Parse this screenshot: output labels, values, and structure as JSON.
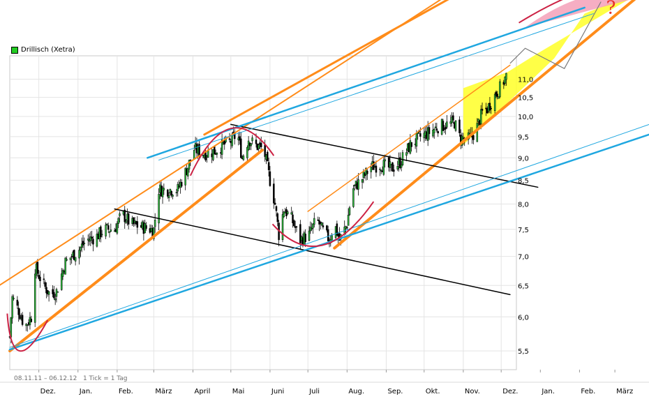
{
  "legend": {
    "label": "Drillisch (Xetra)",
    "color": "#22cc22"
  },
  "range_text": "08.11.11 – 06.12.12   1 Tick = 1 Tag",
  "annotation": "?",
  "chart_data": {
    "type": "candlestick",
    "title": "",
    "xlabel": "",
    "ylabel": "",
    "scale": "log",
    "ylim": [
      5.3,
      11.8
    ],
    "yticks": [
      5.5,
      6.0,
      6.5,
      7.0,
      7.5,
      8.0,
      8.5,
      9.0,
      9.5,
      10.0,
      10.5,
      11.0
    ],
    "ytick_labels": [
      "5,5",
      "6,0",
      "6,5",
      "7,0",
      "7,5",
      "8,0",
      "8,5",
      "9,0",
      "9,5",
      "10,0",
      "10,5",
      "11,0"
    ],
    "xlim": [
      "2011-11-08",
      "2013-03-28"
    ],
    "xtick_labels": [
      {
        "label": "Dez.",
        "date": "2011-12-01"
      },
      {
        "label": "Jan.",
        "date": "2012-01-01"
      },
      {
        "label": "Feb.",
        "date": "2012-02-01"
      },
      {
        "label": "März",
        "date": "2012-03-01"
      },
      {
        "label": "April",
        "date": "2012-04-01"
      },
      {
        "label": "Mai",
        "date": "2012-05-01"
      },
      {
        "label": "Juni",
        "date": "2012-06-01"
      },
      {
        "label": "Juli",
        "date": "2012-07-01"
      },
      {
        "label": "Aug.",
        "date": "2012-08-01"
      },
      {
        "label": "Sep.",
        "date": "2012-09-01"
      },
      {
        "label": "Okt.",
        "date": "2012-10-01"
      },
      {
        "label": "Nov.",
        "date": "2012-11-01"
      },
      {
        "label": "Dez.",
        "date": "2012-12-01"
      },
      {
        "label": "Jan.",
        "date": "2013-01-01"
      },
      {
        "label": "Feb.",
        "date": "2013-02-01"
      },
      {
        "label": "März",
        "date": "2013-03-01"
      }
    ],
    "grid": true,
    "price_path": [
      [
        "2011-11-08",
        5.7
      ],
      [
        "2011-11-10",
        6.3
      ],
      [
        "2011-11-15",
        6.1
      ],
      [
        "2011-11-20",
        5.85
      ],
      [
        "2011-11-25",
        6.0
      ],
      [
        "2011-11-28",
        6.8
      ],
      [
        "2011-12-05",
        6.5
      ],
      [
        "2011-12-10",
        6.35
      ],
      [
        "2011-12-15",
        6.4
      ],
      [
        "2011-12-22",
        6.9
      ],
      [
        "2012-01-01",
        7.1
      ],
      [
        "2012-01-08",
        7.3
      ],
      [
        "2012-01-15",
        7.35
      ],
      [
        "2012-01-22",
        7.5
      ],
      [
        "2012-01-30",
        7.5
      ],
      [
        "2012-02-05",
        7.8
      ],
      [
        "2012-02-12",
        7.6
      ],
      [
        "2012-02-20",
        7.55
      ],
      [
        "2012-02-28",
        7.5
      ],
      [
        "2012-03-01",
        7.5
      ],
      [
        "2012-03-05",
        8.3
      ],
      [
        "2012-03-12",
        8.3
      ],
      [
        "2012-03-20",
        8.3
      ],
      [
        "2012-03-28",
        8.8
      ],
      [
        "2012-04-02",
        9.2
      ],
      [
        "2012-04-10",
        9.1
      ],
      [
        "2012-04-18",
        9.15
      ],
      [
        "2012-04-25",
        9.3
      ],
      [
        "2012-05-02",
        9.4
      ],
      [
        "2012-05-06",
        9.6
      ],
      [
        "2012-05-10",
        9.0
      ],
      [
        "2012-05-15",
        9.45
      ],
      [
        "2012-05-20",
        9.3
      ],
      [
        "2012-05-27",
        9.2
      ],
      [
        "2012-06-01",
        8.5
      ],
      [
        "2012-06-05",
        8.0
      ],
      [
        "2012-06-08",
        7.4
      ],
      [
        "2012-06-12",
        7.9
      ],
      [
        "2012-06-18",
        7.7
      ],
      [
        "2012-06-25",
        7.3
      ],
      [
        "2012-07-02",
        7.4
      ],
      [
        "2012-07-08",
        7.7
      ],
      [
        "2012-07-12",
        7.5
      ],
      [
        "2012-07-18",
        7.3
      ],
      [
        "2012-07-22",
        7.6
      ],
      [
        "2012-07-26",
        7.3
      ],
      [
        "2012-08-01",
        7.6
      ],
      [
        "2012-08-05",
        8.3
      ],
      [
        "2012-08-12",
        8.5
      ],
      [
        "2012-08-20",
        8.8
      ],
      [
        "2012-08-28",
        8.85
      ],
      [
        "2012-09-05",
        8.75
      ],
      [
        "2012-09-12",
        8.9
      ],
      [
        "2012-09-20",
        9.3
      ],
      [
        "2012-09-28",
        9.5
      ],
      [
        "2012-10-05",
        9.6
      ],
      [
        "2012-10-12",
        9.75
      ],
      [
        "2012-10-20",
        9.8
      ],
      [
        "2012-10-25",
        9.85
      ],
      [
        "2012-10-29",
        9.5
      ],
      [
        "2012-11-03",
        9.4
      ],
      [
        "2012-11-08",
        9.5
      ],
      [
        "2012-11-12",
        9.75
      ],
      [
        "2012-11-16",
        10.1
      ],
      [
        "2012-11-20",
        10.2
      ],
      [
        "2012-11-25",
        10.5
      ],
      [
        "2012-11-30",
        10.75
      ],
      [
        "2012-12-06",
        11.15
      ]
    ],
    "trendlines": [
      {
        "kind": "channel-upper",
        "color": "#ff8c1a",
        "width": 2,
        "from": [
          "2011-10-27",
          6.45
        ],
        "to": [
          "2012-10-15",
          13.5
        ]
      },
      {
        "kind": "channel-lower",
        "color": "#ff8c1a",
        "width": 4,
        "from": [
          "2011-11-08",
          5.5
        ],
        "to": [
          "2012-05-26",
          9.18
        ]
      },
      {
        "kind": "channel-upper2",
        "color": "#ff8c1a",
        "width": 3,
        "from": [
          "2012-04-10",
          9.55
        ],
        "to": [
          "2012-10-29",
          13.7
        ]
      },
      {
        "kind": "channel-thin",
        "color": "#ff8c1a",
        "width": 1.5,
        "from": [
          "2012-07-01",
          7.85
        ],
        "to": [
          "2012-12-08",
          11.4
        ]
      },
      {
        "kind": "channel-lower2",
        "color": "#ff8c1a",
        "width": 4,
        "from": [
          "2012-07-22",
          7.15
        ],
        "to": [
          "2013-03-28",
          13.9
        ]
      },
      {
        "kind": "resistance",
        "color": "#000000",
        "width": 1.5,
        "from": [
          "2012-01-30",
          7.9
        ],
        "to": [
          "2012-12-08",
          6.35
        ]
      },
      {
        "kind": "resistance",
        "color": "#000000",
        "width": 1.5,
        "from": [
          "2012-05-01",
          9.8
        ],
        "to": [
          "2012-12-30",
          8.35
        ]
      },
      {
        "kind": "support",
        "color": "#1fa7e0",
        "width": 2.5,
        "from": [
          "2011-11-08",
          5.52
        ],
        "to": [
          "2013-03-28",
          9.55
        ]
      },
      {
        "kind": "support-thin",
        "color": "#1fa7e0",
        "width": 1,
        "from": [
          "2011-11-08",
          5.55
        ],
        "to": [
          "2013-03-28",
          9.8
        ]
      },
      {
        "kind": "resistance-blue",
        "color": "#1fa7e0",
        "width": 2.5,
        "from": [
          "2012-02-25",
          9.0
        ],
        "to": [
          "2013-02-05",
          13.2
        ]
      },
      {
        "kind": "resistance-blue-thin",
        "color": "#1fa7e0",
        "width": 1,
        "from": [
          "2012-03-05",
          8.95
        ],
        "to": [
          "2013-02-12",
          13.0
        ]
      }
    ],
    "arcs": [
      {
        "color": "#cc2244",
        "points": [
          [
            "2011-11-06",
            6.05
          ],
          [
            "2011-11-16",
            5.5
          ],
          [
            "2011-12-08",
            5.95
          ]
        ]
      },
      {
        "color": "#cc2244",
        "points": [
          [
            "2012-03-30",
            8.6
          ],
          [
            "2012-05-01",
            9.7
          ],
          [
            "2012-06-04",
            9.05
          ]
        ]
      },
      {
        "color": "#cc2244",
        "points": [
          [
            "2012-06-03",
            7.6
          ],
          [
            "2012-07-12",
            7.2
          ],
          [
            "2012-08-22",
            8.05
          ]
        ]
      },
      {
        "color": "#cc2244",
        "points": [
          [
            "2012-12-15",
            12.7
          ],
          [
            "2013-02-15",
            13.9
          ],
          [
            "2013-03-28",
            13.7
          ]
        ]
      }
    ],
    "forecast_zone": {
      "fill": "#ffff33",
      "points": [
        [
          "2012-11-01",
          10.75
        ],
        [
          "2012-12-06",
          11.2
        ],
        [
          "2012-12-30",
          11.75
        ],
        [
          "2013-03-28",
          13.9
        ],
        [
          "2013-02-05",
          13.0
        ],
        [
          "2013-01-12",
          11.6
        ],
        [
          "2012-11-01",
          9.3
        ]
      ]
    },
    "forecast_arrow": {
      "color": "#7a7a7a",
      "points": [
        [
          "2012-12-08",
          11.45
        ],
        [
          "2012-12-20",
          11.9
        ],
        [
          "2013-01-20",
          11.3
        ],
        [
          "2013-02-18",
          13.4
        ]
      ]
    },
    "question_mark_at": [
      "2013-02-22",
      13.0
    ]
  }
}
